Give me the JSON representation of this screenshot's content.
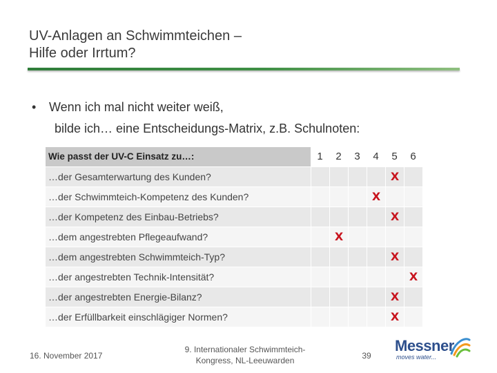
{
  "title": {
    "line1": "UV-Anlagen an Schwimmteichen –",
    "line2": "Hilfe oder Irrtum?"
  },
  "bullet": {
    "dot": "•",
    "line1": "Wenn ich mal nicht weiter weiß,",
    "line2": "bilde ich… eine Entscheidungs-Matrix, z.B. Schulnoten:"
  },
  "matrix": {
    "header": "Wie passt der UV-C Einsatz zu…:",
    "grades": [
      "1",
      "2",
      "3",
      "4",
      "5",
      "6"
    ],
    "mark_symbol": "X",
    "mark_color": "#c8141e",
    "rows": [
      {
        "label": "…der Gesamterwartung des Kunden?",
        "grade": 5
      },
      {
        "label": "…der Schwimmteich-Kompetenz des Kunden?",
        "grade": 4
      },
      {
        "label": "…der Kompetenz des Einbau-Betriebs?",
        "grade": 5
      },
      {
        "label": "…dem angestrebten Pflegeaufwand?",
        "grade": 2
      },
      {
        "label": "…dem angestrebten Schwimmteich-Typ?",
        "grade": 5
      },
      {
        "label": "…der angestrebten Technik-Intensität?",
        "grade": 6
      },
      {
        "label": "…der angestrebten Energie-Bilanz?",
        "grade": 5
      },
      {
        "label": "…der Erfüllbarkeit einschlägiger Normen?",
        "grade": 5
      }
    ]
  },
  "footer": {
    "date": "16. November 2017",
    "event_line1": "9. Internationaler Schwimmteich-",
    "event_line2": "Kongress, NL-Leeuwarden",
    "page": "39"
  },
  "logo": {
    "name": "Messner",
    "tagline": "moves water...",
    "color": "#2d4f8c"
  },
  "accent_color": "#2f7d3a"
}
